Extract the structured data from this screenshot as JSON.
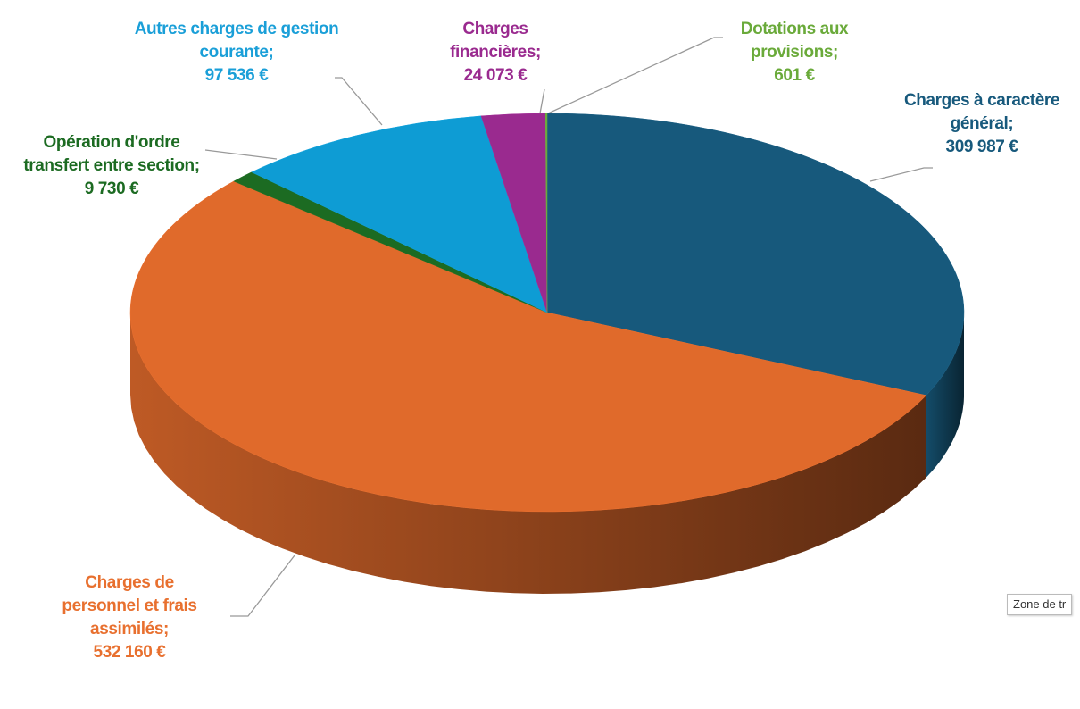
{
  "chart_data": {
    "type": "pie",
    "categories": [
      "Charges à caractère général;",
      "Charges de personnel et frais assimilés;",
      "Opération d'ordre transfert entre section;",
      "Autres charges de gestion courante;",
      "Charges financières;",
      "Dotations aux provisions;"
    ],
    "values": [
      309987,
      532160,
      9730,
      97536,
      24073,
      601
    ],
    "value_labels": [
      "309 987 €",
      "532 160 €",
      "9 730 €",
      "97 536 €",
      "24 073 €",
      "601 €"
    ],
    "colors": [
      "#17597c",
      "#e06a2b",
      "#1c6b22",
      "#0e9cd4",
      "#9a2a8f",
      "#6aa83c"
    ],
    "label_colors": [
      "#17597c",
      "#e8702f",
      "#1c6b22",
      "#1a9fd8",
      "#9a2a8f",
      "#6aaa3a"
    ]
  },
  "tooltip": "Zone de tr"
}
